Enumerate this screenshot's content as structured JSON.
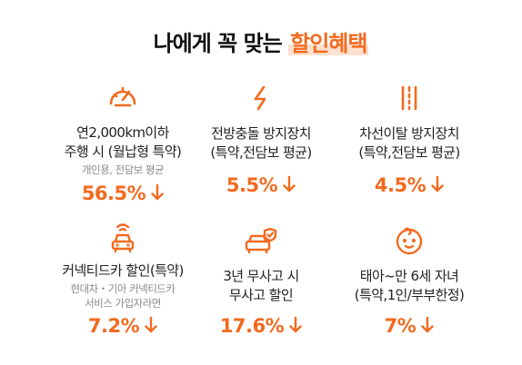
{
  "header": {
    "title_prefix": "나에게 꼭 맞는 ",
    "title_highlight": "할인혜택"
  },
  "colors": {
    "accent": "#f26a1f",
    "highlight_bg": "#ffe0cf",
    "sub_text": "#8a8a8a"
  },
  "discounts": [
    {
      "icon": "speedometer-icon",
      "label": "연2,000km이하\n주행 시 (월납형 특약)",
      "sub": "개인용, 전담보 평균",
      "rate": "56.5%"
    },
    {
      "icon": "lightning-icon",
      "label": "전방충돌 방지장치\n(특약,전담보 평균)",
      "sub": "",
      "rate": "5.5%"
    },
    {
      "icon": "lane-icon",
      "label": "차선이탈 방지장치\n(특약,전담보 평균)",
      "sub": "",
      "rate": "4.5%"
    },
    {
      "icon": "connected-car-icon",
      "label": "커넥티드카 할인(특약)",
      "sub": "현대차・기아 커넥티드카\n서비스 가입자라면",
      "rate": "7.2%"
    },
    {
      "icon": "safe-car-icon",
      "label": "3년 무사고 시\n무사고 할인",
      "sub": "",
      "rate": "17.6%"
    },
    {
      "icon": "baby-face-icon",
      "label": "태아~만 6세 자녀\n(특약,1인/부부한정)",
      "sub": "",
      "rate": "7%"
    }
  ]
}
